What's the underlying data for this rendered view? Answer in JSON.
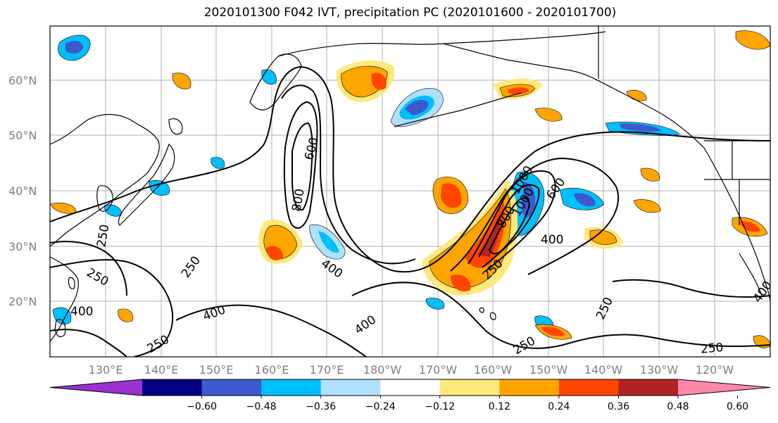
{
  "title": "2020101300 F042 IVT, precipitation PC (2020101600 - 2020101700)",
  "lat_labels": [
    "60°N",
    "50°N",
    "40°N",
    "30°N",
    "20°N"
  ],
  "lon_labels": [
    "130°E",
    "140°E",
    "150°E",
    "160°E",
    "170°E",
    "180°W",
    "170°W",
    "160°W",
    "150°W",
    "140°W",
    "130°W",
    "120°W"
  ],
  "colorbar": {
    "ticks": [
      "−0.60",
      "−0.48",
      "−0.36",
      "−0.24",
      "−0.12",
      "0.12",
      "0.24",
      "0.36",
      "0.48",
      "0.60"
    ],
    "colors": [
      "#9b30d0",
      "#000080",
      "#3c5acd",
      "#00bfff",
      "#b0e0ff",
      "#ffffff",
      "#ffe87c",
      "#ffa500",
      "#ff4500",
      "#b22222",
      "#ff88aa"
    ]
  },
  "contour_labels": [
    "600",
    "800",
    "400",
    "250",
    "250",
    "400",
    "400",
    "250",
    "250",
    "400",
    "600",
    "800",
    "1000",
    "1000",
    "400",
    "250",
    "250",
    "250",
    "400",
    "250"
  ],
  "colors": {
    "grid": "#b0b0b0",
    "contour": "#000000",
    "negative_shading": [
      "#3c5acd",
      "#00bfff",
      "#b0e0ff"
    ],
    "positive_shading": [
      "#ffe87c",
      "#ffa500",
      "#ff4500"
    ]
  }
}
